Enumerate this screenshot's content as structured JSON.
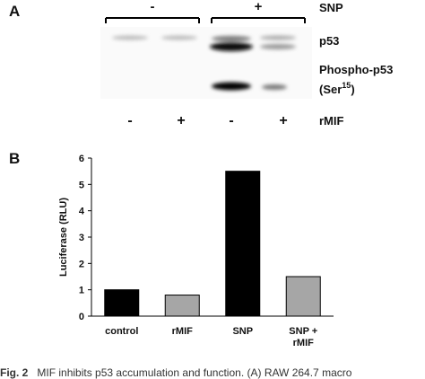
{
  "panel_a": {
    "label": "A",
    "snp_label": "SNP",
    "snp_groups": [
      "-",
      "+"
    ],
    "rows": [
      "p53",
      "Phospho-p53"
    ],
    "ser_prefix": "(Ser",
    "ser_sup": "15",
    "ser_suffix": ")",
    "rmif_label": "rMIF",
    "rmif_signs": [
      "-",
      "+",
      "-",
      "+"
    ]
  },
  "chart_data": {
    "type": "bar",
    "panel_label": "B",
    "ylabel": "Luciferase (RLU)",
    "categories": [
      "control",
      "rMIF",
      "SNP",
      "SNP + rMIF"
    ],
    "values": [
      1.0,
      0.8,
      5.5,
      1.5
    ],
    "colors": [
      "#000000",
      "#a6a6a6",
      "#000000",
      "#a6a6a6"
    ],
    "ylim": [
      0,
      6
    ],
    "yticks": [
      0,
      1,
      2,
      3,
      4,
      5,
      6
    ],
    "grid": false
  },
  "caption": {
    "label": "Fig. 2",
    "text": "MIF inhibits p53 accumulation and function. (A) RAW 264.7 macro"
  }
}
